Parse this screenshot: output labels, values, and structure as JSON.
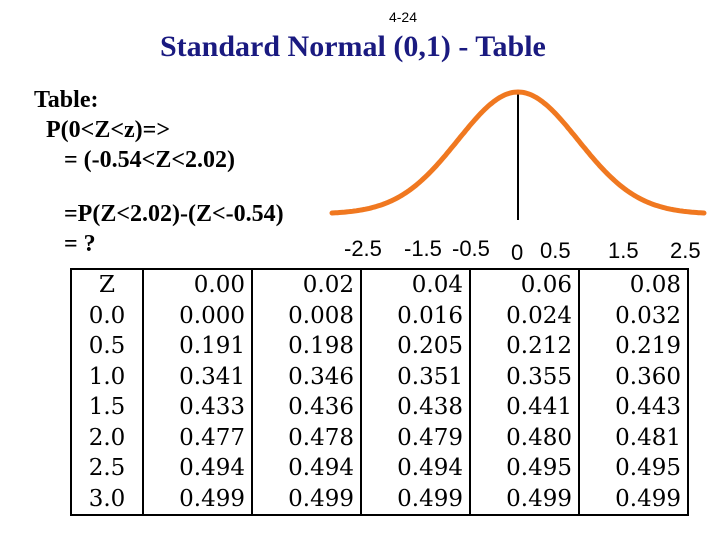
{
  "slide": {
    "number": "4-24",
    "title": "Standard Normal (0,1) - Table"
  },
  "left_text": {
    "line1": "Table:",
    "line2": "P(0<Z<z)=>",
    "line3": "= (-0.54<Z<2.02)",
    "line4": "=P(Z<2.02)-(Z<-0.54)",
    "line5": "= ?"
  },
  "curve": {
    "color": "#f07820",
    "mean": 0,
    "sd": 1,
    "axis_ticks": [
      "-2.5",
      "-1.5",
      "-0.5",
      "0",
      "0.5",
      "1.5",
      "2.5"
    ]
  },
  "table": {
    "header": [
      "Z",
      "0.00",
      "0.02",
      "0.04",
      "0.06",
      "0.08"
    ],
    "rows": [
      [
        "0.0",
        "0.000",
        "0.008",
        "0.016",
        "0.024",
        "0.032"
      ],
      [
        "0.5",
        "0.191",
        "0.198",
        "0.205",
        "0.212",
        "0.219"
      ],
      [
        "1.0",
        "0.341",
        "0.346",
        "0.351",
        "0.355",
        "0.360"
      ],
      [
        "1.5",
        "0.433",
        "0.436",
        "0.438",
        "0.441",
        "0.443"
      ],
      [
        "2.0",
        "0.477",
        "0.478",
        "0.479",
        "0.480",
        "0.481"
      ],
      [
        "2.5",
        "0.494",
        "0.494",
        "0.494",
        "0.495",
        "0.495"
      ],
      [
        "3.0",
        "0.499",
        "0.499",
        "0.499",
        "0.499",
        "0.499"
      ]
    ]
  }
}
